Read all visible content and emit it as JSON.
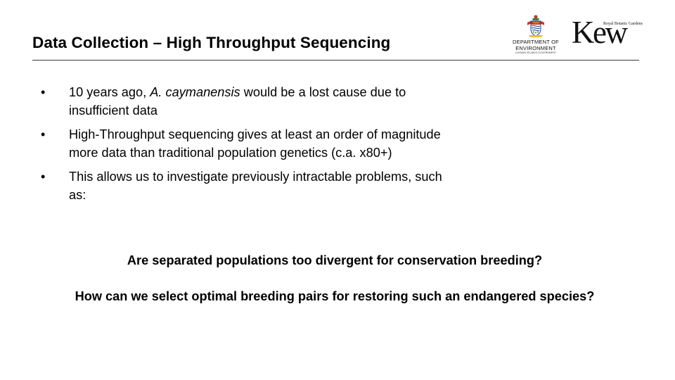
{
  "slide": {
    "title": "Data Collection – High Throughput Sequencing",
    "logos": {
      "doe": {
        "icon": "coat-of-arms-icon",
        "line1": "DEPARTMENT OF",
        "line2": "ENVIRONMENT",
        "line3": "CAYMAN ISLANDS GOVERNMENT"
      },
      "kew": {
        "small_text": "Royal Botanic Gardens",
        "wordmark": "Kew"
      }
    },
    "bullet_symbol": "•",
    "bullets": [
      {
        "pre": "10 years ago, ",
        "italic": "A. caymanensis",
        "post": " would be a lost cause due to insufficient data"
      },
      {
        "text": "High-Throughput sequencing gives at least an order of magnitude more data than traditional population genetics (c.a. x80+)"
      },
      {
        "text": "This allows us to investigate previously intractable problems, such as:"
      }
    ],
    "questions": [
      "Are separated populations too divergent for conservation breeding?",
      "How can we select optimal breeding pairs for restoring such an endangered species?"
    ]
  }
}
